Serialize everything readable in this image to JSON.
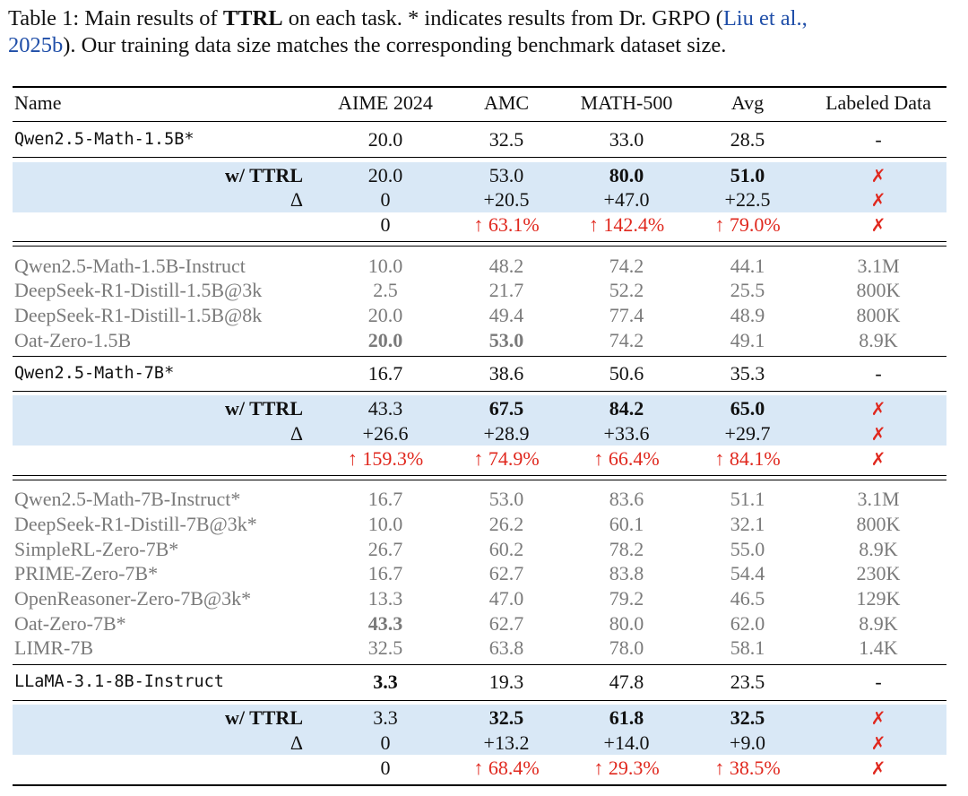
{
  "caption": {
    "part1": "Table 1: Main results of ",
    "bold": "TTRL",
    "part2": " on each task. * indicates results from Dr. GRPO (",
    "cite1": "Liu et al.,",
    "cite2": "2025b",
    "part3": "). Our training data size matches the corresponding benchmark dataset size."
  },
  "headers": [
    "Name",
    "AIME 2024",
    "AMC",
    "MATH-500",
    "Avg",
    "Labeled Data"
  ],
  "rows": {
    "qwen15": [
      "Qwen2.5-Math-1.5B*",
      "20.0",
      "32.5",
      "33.0",
      "28.5",
      "-"
    ],
    "qwen15_ttrl": [
      "w/ TTRL",
      "20.0",
      "53.0",
      "80.0",
      "51.0",
      "✗"
    ],
    "qwen15_delta": [
      "Δ",
      "0",
      "+20.5",
      "+47.0",
      "+22.5",
      "✗"
    ],
    "qwen15_pct": [
      "",
      "0",
      "↑ 63.1%",
      "↑ 142.4%",
      "↑ 79.0%",
      "✗"
    ],
    "b1": [
      "Qwen2.5-Math-1.5B-Instruct",
      "10.0",
      "48.2",
      "74.2",
      "44.1",
      "3.1M"
    ],
    "b2": [
      "DeepSeek-R1-Distill-1.5B@3k",
      "2.5",
      "21.7",
      "52.2",
      "25.5",
      "800K"
    ],
    "b3": [
      "DeepSeek-R1-Distill-1.5B@8k",
      "20.0",
      "49.4",
      "77.4",
      "48.9",
      "800K"
    ],
    "b4": [
      "Oat-Zero-1.5B",
      "20.0",
      "53.0",
      "74.2",
      "49.1",
      "8.9K"
    ],
    "qwen7": [
      "Qwen2.5-Math-7B*",
      "16.7",
      "38.6",
      "50.6",
      "35.3",
      "-"
    ],
    "qwen7_ttrl": [
      "w/ TTRL",
      "43.3",
      "67.5",
      "84.2",
      "65.0",
      "✗"
    ],
    "qwen7_delta": [
      "Δ",
      "+26.6",
      "+28.9",
      "+33.6",
      "+29.7",
      "✗"
    ],
    "qwen7_pct": [
      "",
      "↑ 159.3%",
      "↑ 74.9%",
      "↑ 66.4%",
      "↑ 84.1%",
      "✗"
    ],
    "c1": [
      "Qwen2.5-Math-7B-Instruct*",
      "16.7",
      "53.0",
      "83.6",
      "51.1",
      "3.1M"
    ],
    "c2": [
      "DeepSeek-R1-Distill-7B@3k*",
      "10.0",
      "26.2",
      "60.1",
      "32.1",
      "800K"
    ],
    "c3": [
      "SimpleRL-Zero-7B*",
      "26.7",
      "60.2",
      "78.2",
      "55.0",
      "8.9K"
    ],
    "c4": [
      "PRIME-Zero-7B*",
      "16.7",
      "62.7",
      "83.8",
      "54.4",
      "230K"
    ],
    "c5": [
      "OpenReasoner-Zero-7B@3k*",
      "13.3",
      "47.0",
      "79.2",
      "46.5",
      "129K"
    ],
    "c6": [
      "Oat-Zero-7B*",
      "43.3",
      "62.7",
      "80.0",
      "62.0",
      "8.9K"
    ],
    "c7": [
      "LIMR-7B",
      "32.5",
      "63.8",
      "78.0",
      "58.1",
      "1.4K"
    ],
    "llama": [
      "LLaMA-3.1-8B-Instruct",
      "3.3",
      "19.3",
      "47.8",
      "23.5",
      "-"
    ],
    "llama_ttrl": [
      "w/ TTRL",
      "3.3",
      "32.5",
      "61.8",
      "32.5",
      "✗"
    ],
    "llama_delta": [
      "Δ",
      "0",
      "+13.2",
      "+14.0",
      "+9.0",
      "✗"
    ],
    "llama_pct": [
      "",
      "0",
      "↑ 68.4%",
      "↑ 29.3%",
      "↑ 38.5%",
      "✗"
    ]
  },
  "colors": {
    "highlight": "#d9e8f6",
    "improvement": "#e0281e",
    "baseline_text": "#7a7a7a",
    "citation": "#1f4ea8"
  }
}
